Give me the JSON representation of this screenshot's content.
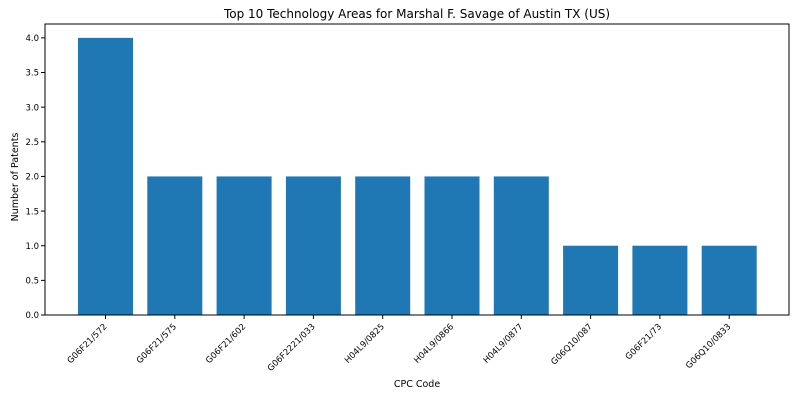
{
  "chart_data": {
    "type": "bar",
    "title": "Top 10 Technology Areas for Marshal F. Savage of Austin TX (US)",
    "xlabel": "CPC Code",
    "ylabel": "Number of Patents",
    "categories": [
      "G06F21/572",
      "G06F21/575",
      "G06F21/602",
      "G06F2221/033",
      "H04L9/0825",
      "H04L9/0866",
      "H04L9/0877",
      "G06Q10/087",
      "G06F21/73",
      "G06Q10/0833"
    ],
    "values": [
      4,
      2,
      2,
      2,
      2,
      2,
      2,
      1,
      1,
      1
    ],
    "ylim": [
      0,
      4.2
    ],
    "yticks": [
      "0.0",
      "0.5",
      "1.0",
      "1.5",
      "2.0",
      "2.5",
      "3.0",
      "3.5",
      "4.0"
    ],
    "bar_color": "#1f77b4",
    "grid": false,
    "legend": "none"
  }
}
